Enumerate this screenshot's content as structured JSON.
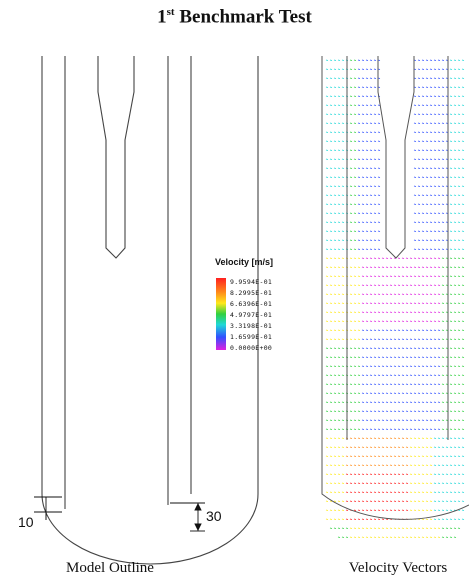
{
  "title": {
    "main": "1",
    "sup": "st",
    "rest": " Benchmark Test"
  },
  "captions": {
    "left": "Model Outline",
    "right": "Velocity Vectors"
  },
  "legend": {
    "title": "Velocity [m/s]",
    "labels": [
      "9.9594E-01",
      "8.2995E-01",
      "6.6396E-01",
      "4.9797E-01",
      "3.3198E-01",
      "1.6599E-01",
      "0.0000E+00"
    ],
    "colors": [
      "#ff2020",
      "#ff8c1a",
      "#ffe81a",
      "#30d040",
      "#20d8d8",
      "#3050ff",
      "#e020e0"
    ]
  },
  "dimensions": {
    "gap_label": "10",
    "height_label": "30"
  }
}
